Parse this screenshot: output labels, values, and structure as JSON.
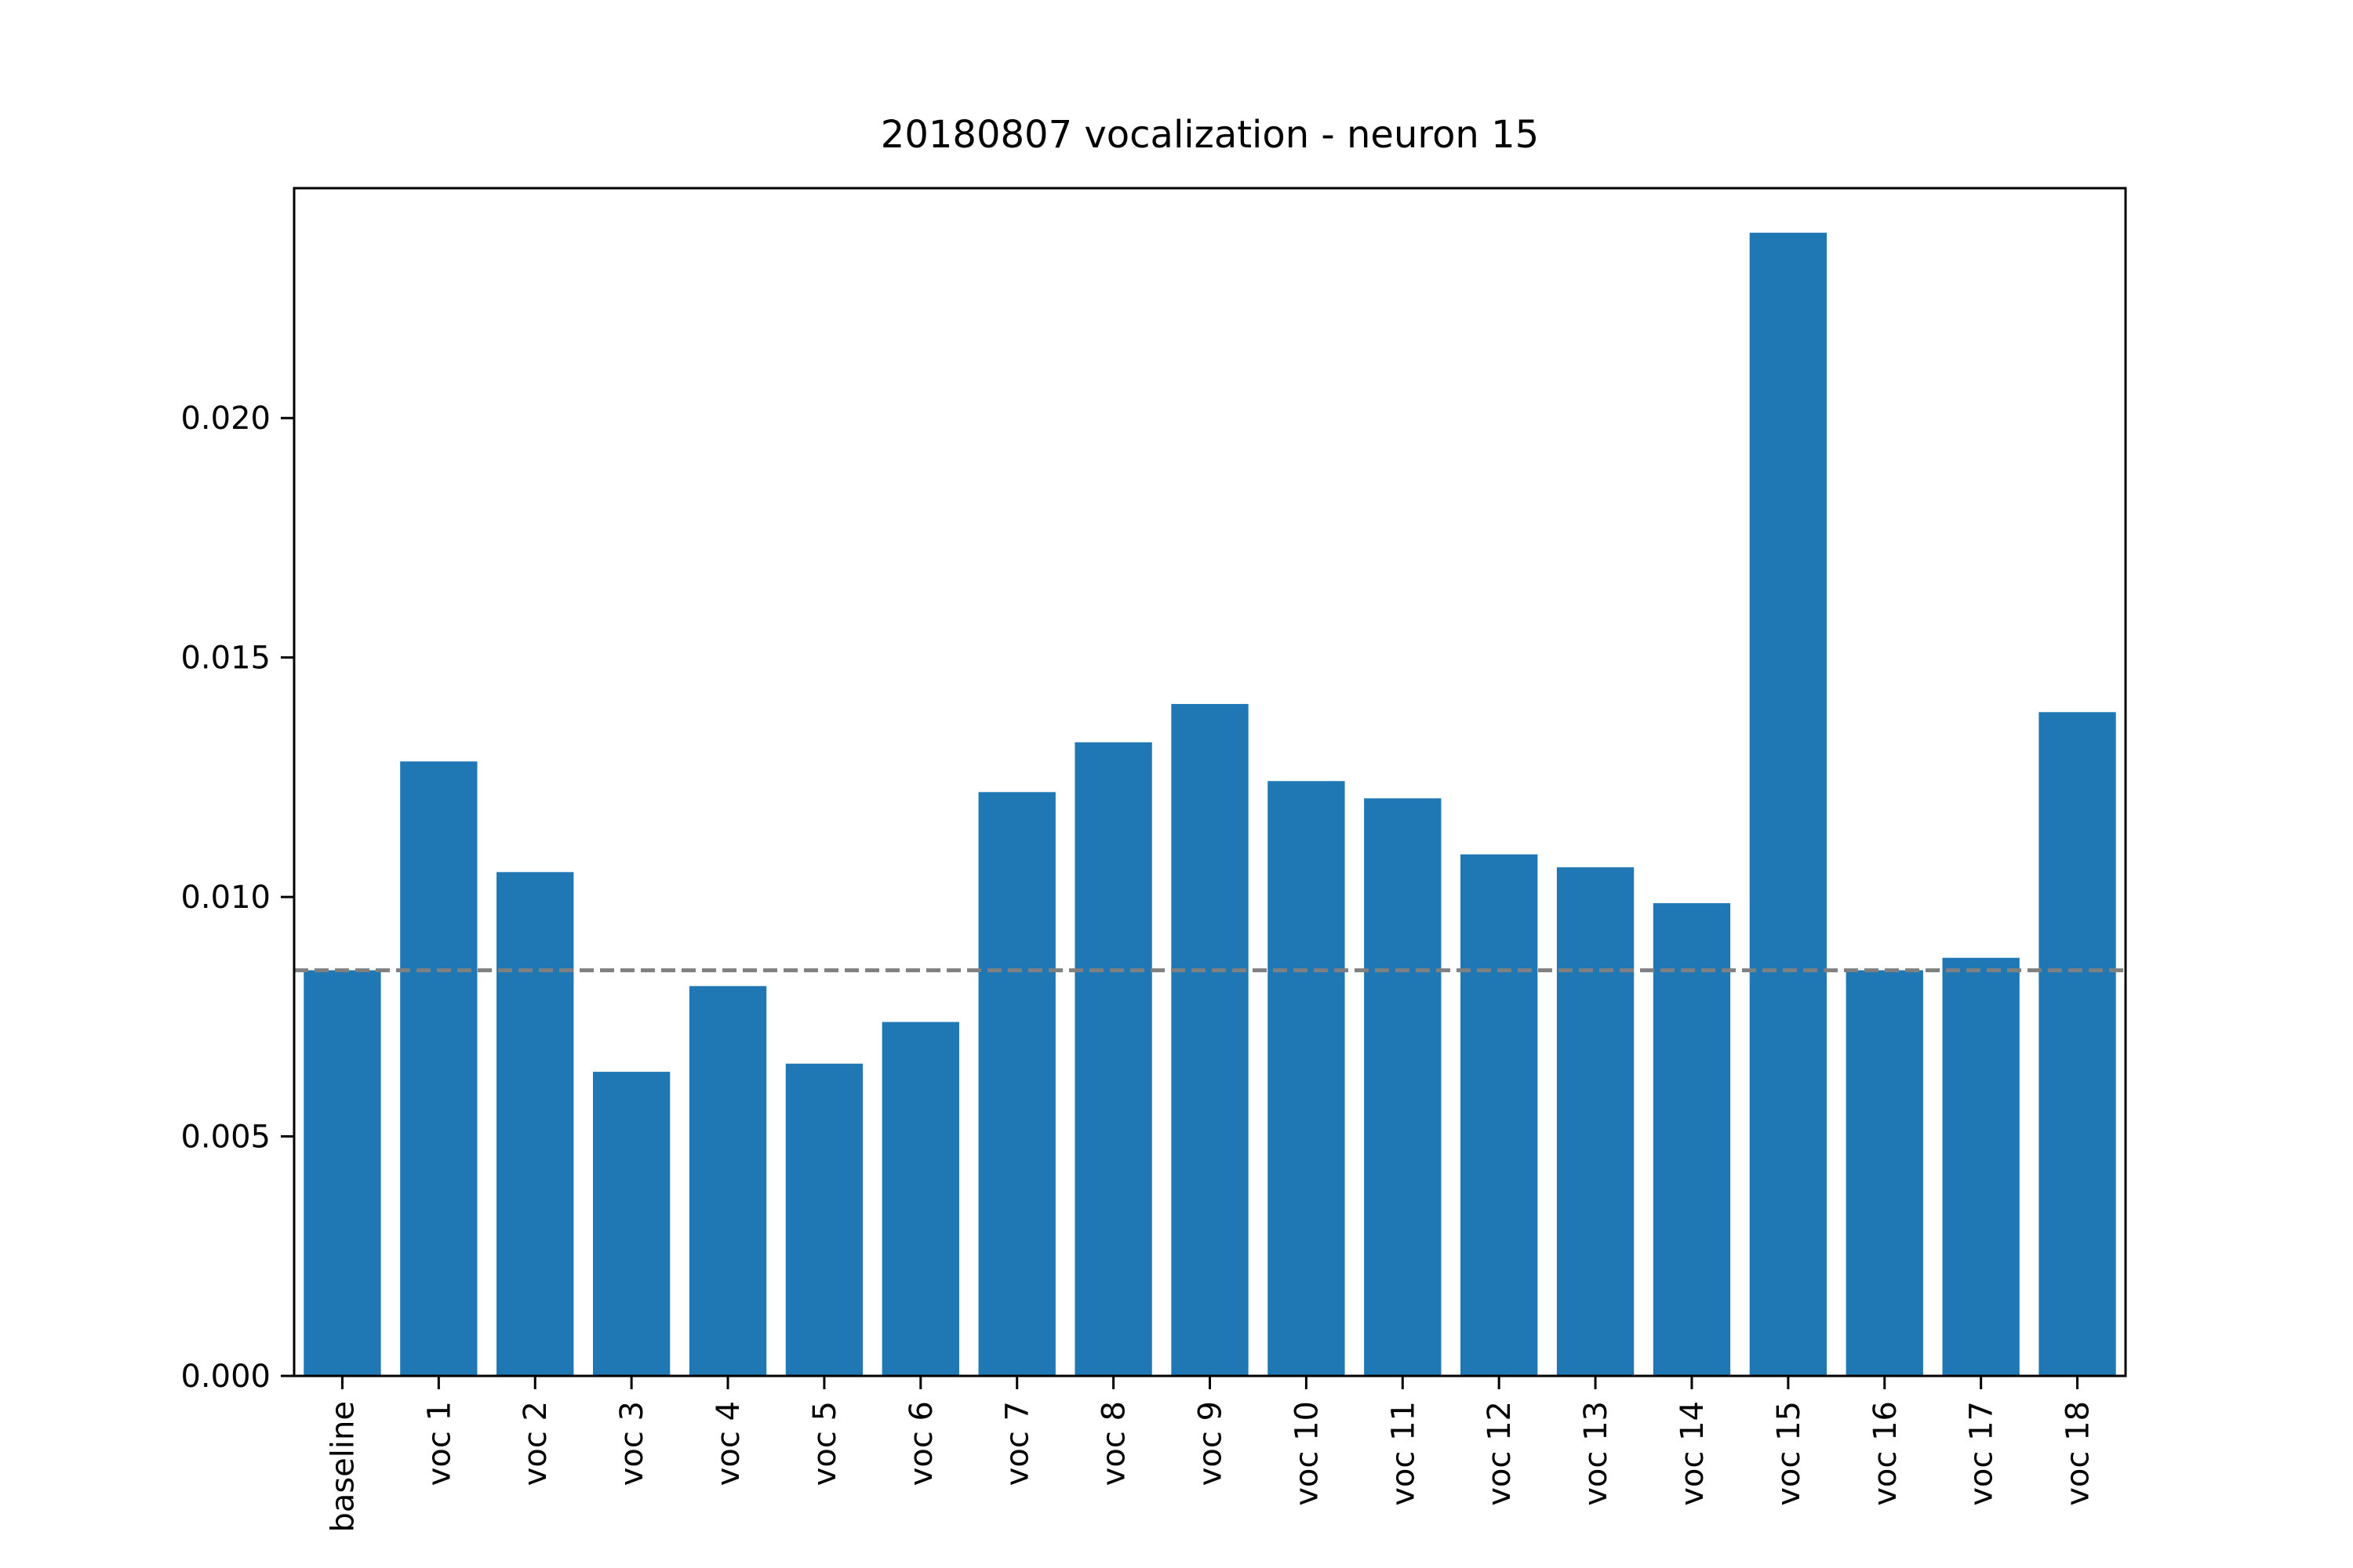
{
  "chart_data": {
    "type": "bar",
    "title": "20180807 vocalization - neuron 15",
    "xlabel": "",
    "ylabel": "",
    "categories": [
      "baseline",
      "voc 1",
      "voc 2",
      "voc 3",
      "voc 4",
      "voc 5",
      "voc 6",
      "voc 7",
      "voc 8",
      "voc 9",
      "voc 10",
      "voc 11",
      "voc 12",
      "voc 13",
      "voc 14",
      "voc 15",
      "voc 16",
      "voc 17",
      "voc 18"
    ],
    "values": [
      0.00847,
      0.01283,
      0.01052,
      0.00635,
      0.00814,
      0.00652,
      0.00739,
      0.01219,
      0.01323,
      0.01403,
      0.01242,
      0.01206,
      0.01089,
      0.01062,
      0.00987,
      0.02387,
      0.00847,
      0.00873,
      0.01386
    ],
    "ylim": [
      0,
      0.0248
    ],
    "yticks": [
      0.0,
      0.005,
      0.01,
      0.015,
      0.02
    ],
    "ytick_labels": [
      "0.000",
      "0.005",
      "0.010",
      "0.015",
      "0.020"
    ],
    "reference_line": {
      "value": 0.00847,
      "style": "dashed",
      "color": "#808080"
    },
    "bar_color": "#1f77b4",
    "grid": false,
    "legend": "none"
  }
}
